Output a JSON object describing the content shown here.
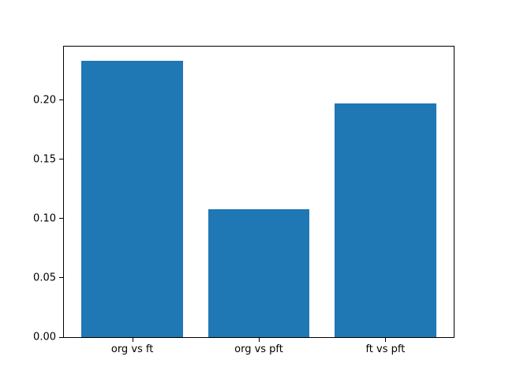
{
  "chart_data": {
    "type": "bar",
    "title": "",
    "xlabel": "",
    "ylabel": "",
    "categories": [
      "org vs ft",
      "org vs pft",
      "ft vs pft"
    ],
    "values": [
      0.233,
      0.108,
      0.197
    ],
    "ylim": [
      0,
      0.245
    ],
    "xlim": [
      -0.54,
      2.54
    ],
    "yticks": [
      0,
      0.05,
      0.1,
      0.15,
      0.2
    ],
    "ytick_labels": [
      "0.00",
      "0.05",
      "0.10",
      "0.15",
      "0.20"
    ],
    "bar_width_fraction": 0.8,
    "grid": false,
    "legend_position": "none",
    "colors": {
      "bar": "#1f77b4",
      "axis": "#000000",
      "text": "#000000",
      "background": "#ffffff"
    }
  }
}
